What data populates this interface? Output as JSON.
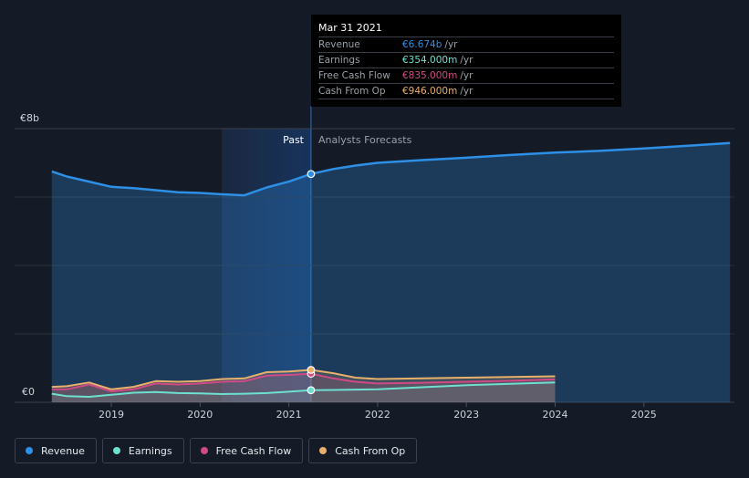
{
  "chart_data": {
    "type": "area",
    "y_axis": {
      "top_label": "€8b",
      "bottom_label": "€0",
      "ylim": [
        0,
        8
      ]
    },
    "x_ticks": [
      "2019",
      "2020",
      "2021",
      "2022",
      "2023",
      "2024",
      "2025"
    ],
    "regions": {
      "past_label": "Past",
      "forecast_label": "Analysts Forecasts"
    },
    "divider_x": 2021.25,
    "xlim": [
      2018.0,
      2026.0
    ],
    "series": [
      {
        "name": "Revenue",
        "color": "#2e8fe6",
        "points": [
          [
            2018.33,
            6.75
          ],
          [
            2018.5,
            6.6
          ],
          [
            2018.75,
            6.45
          ],
          [
            2019.0,
            6.3
          ],
          [
            2019.25,
            6.26
          ],
          [
            2019.5,
            6.2
          ],
          [
            2019.75,
            6.14
          ],
          [
            2020.0,
            6.12
          ],
          [
            2020.25,
            6.08
          ],
          [
            2020.5,
            6.05
          ],
          [
            2020.75,
            6.28
          ],
          [
            2021.0,
            6.45
          ],
          [
            2021.25,
            6.674
          ],
          [
            2021.5,
            6.82
          ],
          [
            2021.75,
            6.92
          ],
          [
            2022.0,
            7.0
          ],
          [
            2022.5,
            7.08
          ],
          [
            2023.0,
            7.15
          ],
          [
            2023.5,
            7.23
          ],
          [
            2024.0,
            7.3
          ],
          [
            2024.5,
            7.35
          ],
          [
            2025.0,
            7.42
          ],
          [
            2025.5,
            7.5
          ],
          [
            2025.97,
            7.58
          ]
        ]
      },
      {
        "name": "Earnings",
        "color": "#6ee0d0",
        "points": [
          [
            2018.33,
            0.25
          ],
          [
            2018.5,
            0.18
          ],
          [
            2018.75,
            0.16
          ],
          [
            2019.0,
            0.22
          ],
          [
            2019.25,
            0.28
          ],
          [
            2019.5,
            0.3
          ],
          [
            2019.75,
            0.27
          ],
          [
            2020.0,
            0.26
          ],
          [
            2020.25,
            0.24
          ],
          [
            2020.5,
            0.25
          ],
          [
            2020.75,
            0.27
          ],
          [
            2021.0,
            0.31
          ],
          [
            2021.25,
            0.354
          ],
          [
            2021.5,
            0.36
          ],
          [
            2022.0,
            0.38
          ],
          [
            2022.5,
            0.44
          ],
          [
            2023.0,
            0.5
          ],
          [
            2023.5,
            0.54
          ],
          [
            2024.0,
            0.58
          ]
        ]
      },
      {
        "name": "Free Cash Flow",
        "color": "#d04a86",
        "points": [
          [
            2018.33,
            0.38
          ],
          [
            2018.5,
            0.38
          ],
          [
            2018.75,
            0.52
          ],
          [
            2019.0,
            0.32
          ],
          [
            2019.25,
            0.38
          ],
          [
            2019.5,
            0.55
          ],
          [
            2019.75,
            0.52
          ],
          [
            2020.0,
            0.55
          ],
          [
            2020.25,
            0.6
          ],
          [
            2020.5,
            0.62
          ],
          [
            2020.75,
            0.78
          ],
          [
            2021.0,
            0.8
          ],
          [
            2021.25,
            0.835
          ],
          [
            2021.5,
            0.7
          ],
          [
            2021.75,
            0.6
          ],
          [
            2022.0,
            0.55
          ],
          [
            2022.5,
            0.57
          ],
          [
            2023.0,
            0.6
          ],
          [
            2023.5,
            0.63
          ],
          [
            2024.0,
            0.67
          ]
        ]
      },
      {
        "name": "Cash From Op",
        "color": "#e8b06a",
        "points": [
          [
            2018.33,
            0.45
          ],
          [
            2018.5,
            0.47
          ],
          [
            2018.75,
            0.58
          ],
          [
            2019.0,
            0.38
          ],
          [
            2019.25,
            0.45
          ],
          [
            2019.5,
            0.62
          ],
          [
            2019.75,
            0.6
          ],
          [
            2020.0,
            0.62
          ],
          [
            2020.25,
            0.68
          ],
          [
            2020.5,
            0.7
          ],
          [
            2020.75,
            0.88
          ],
          [
            2021.0,
            0.9
          ],
          [
            2021.25,
            0.946
          ],
          [
            2021.5,
            0.85
          ],
          [
            2021.75,
            0.72
          ],
          [
            2022.0,
            0.68
          ],
          [
            2022.5,
            0.7
          ],
          [
            2023.0,
            0.72
          ],
          [
            2023.5,
            0.74
          ],
          [
            2024.0,
            0.76
          ]
        ]
      }
    ]
  },
  "tooltip": {
    "date": "Mar 31 2021",
    "unit": "/yr",
    "rows": [
      {
        "name": "Revenue",
        "value": "€6.674b",
        "color": "#2e8fe6"
      },
      {
        "name": "Earnings",
        "value": "€354.000m",
        "color": "#6ee0d0"
      },
      {
        "name": "Free Cash Flow",
        "value": "€835.000m",
        "color": "#d04a86"
      },
      {
        "name": "Cash From Op",
        "value": "€946.000m",
        "color": "#e8b06a"
      }
    ]
  },
  "legend": [
    {
      "label": "Revenue",
      "color": "#2e8fe6"
    },
    {
      "label": "Earnings",
      "color": "#6ee0d0"
    },
    {
      "label": "Free Cash Flow",
      "color": "#d04a86"
    },
    {
      "label": "Cash From Op",
      "color": "#e8b06a"
    }
  ]
}
